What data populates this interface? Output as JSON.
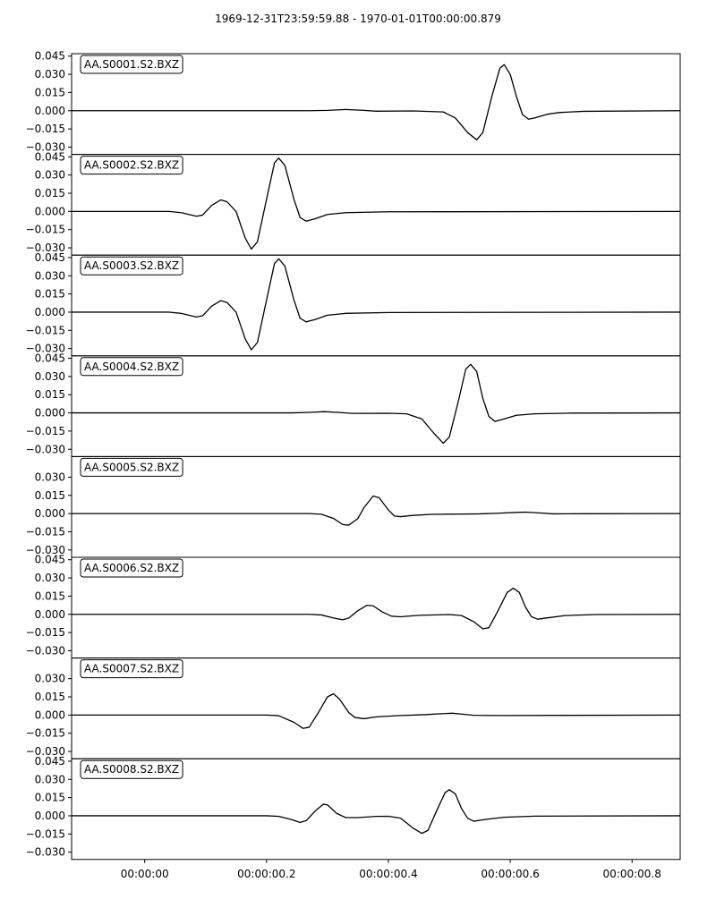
{
  "figure": {
    "title": "1969-12-31T23:59:59.88  -  1970-01-01T00:00:00.879"
  },
  "chart_data": {
    "type": "line",
    "title": "1969-12-31T23:59:59.88  -  1970-01-01T00:00:00.879",
    "x_axis": {
      "label": "",
      "range_seconds": [
        -0.12,
        0.879
      ],
      "ticks": [
        {
          "value": 0.0,
          "label": "00:00:00"
        },
        {
          "value": 0.2,
          "label": "00:00:00.2"
        },
        {
          "value": 0.4,
          "label": "00:00:00.4"
        },
        {
          "value": 0.6,
          "label": "00:00:00.6"
        },
        {
          "value": 0.8,
          "label": "00:00:00.8"
        }
      ]
    },
    "y_axis": {
      "range": [
        -0.036,
        0.047
      ],
      "unit": ""
    },
    "grid": false,
    "line_color": "#000000",
    "panels": [
      {
        "station": "AA.S0001.S2.BXZ",
        "y_ticks": [
          0.045,
          0.03,
          0.015,
          0.0,
          -0.015,
          -0.03
        ],
        "y_tick_labels": [
          "0.045",
          "0.030",
          "0.015",
          "0.000",
          "−0.015",
          "−0.030"
        ],
        "points": [
          [
            -0.12,
            0
          ],
          [
            0.27,
            0
          ],
          [
            0.3,
            0.0003
          ],
          [
            0.33,
            0.001
          ],
          [
            0.36,
            0.0003
          ],
          [
            0.38,
            -0.0004
          ],
          [
            0.44,
            -0.0002
          ],
          [
            0.49,
            -0.001
          ],
          [
            0.51,
            -0.006
          ],
          [
            0.53,
            -0.018
          ],
          [
            0.545,
            -0.024
          ],
          [
            0.555,
            -0.018
          ],
          [
            0.57,
            0.012
          ],
          [
            0.583,
            0.035
          ],
          [
            0.59,
            0.038
          ],
          [
            0.6,
            0.03
          ],
          [
            0.61,
            0.012
          ],
          [
            0.62,
            -0.003
          ],
          [
            0.63,
            -0.007
          ],
          [
            0.64,
            -0.006
          ],
          [
            0.66,
            -0.003
          ],
          [
            0.68,
            -0.0015
          ],
          [
            0.72,
            -0.0005
          ],
          [
            0.879,
            0
          ]
        ]
      },
      {
        "station": "AA.S0002.S2.BXZ",
        "y_ticks": [
          0.045,
          0.03,
          0.015,
          0.0,
          -0.015,
          -0.03
        ],
        "y_tick_labels": [
          "0.045",
          "0.030",
          "0.015",
          "0.000",
          "−0.015",
          "−0.030"
        ],
        "points": [
          [
            -0.12,
            0
          ],
          [
            0.04,
            0
          ],
          [
            0.06,
            -0.001
          ],
          [
            0.085,
            -0.004
          ],
          [
            0.095,
            -0.003
          ],
          [
            0.11,
            0.005
          ],
          [
            0.125,
            0.0095
          ],
          [
            0.135,
            0.008
          ],
          [
            0.15,
            0.0
          ],
          [
            0.165,
            -0.022
          ],
          [
            0.175,
            -0.031
          ],
          [
            0.185,
            -0.025
          ],
          [
            0.2,
            0.01
          ],
          [
            0.213,
            0.04
          ],
          [
            0.22,
            0.044
          ],
          [
            0.23,
            0.038
          ],
          [
            0.245,
            0.01
          ],
          [
            0.255,
            -0.005
          ],
          [
            0.265,
            -0.008
          ],
          [
            0.28,
            -0.006
          ],
          [
            0.3,
            -0.0025
          ],
          [
            0.33,
            -0.001
          ],
          [
            0.4,
            -0.0003
          ],
          [
            0.879,
            0
          ]
        ]
      },
      {
        "station": "AA.S0003.S2.BXZ",
        "y_ticks": [
          0.045,
          0.03,
          0.015,
          0.0,
          -0.015,
          -0.03
        ],
        "y_tick_labels": [
          "0.045",
          "0.030",
          "0.015",
          "0.000",
          "−0.015",
          "−0.030"
        ],
        "points": [
          [
            -0.12,
            0
          ],
          [
            0.04,
            0
          ],
          [
            0.06,
            -0.001
          ],
          [
            0.085,
            -0.004
          ],
          [
            0.095,
            -0.003
          ],
          [
            0.11,
            0.005
          ],
          [
            0.125,
            0.0095
          ],
          [
            0.135,
            0.008
          ],
          [
            0.15,
            0.0
          ],
          [
            0.165,
            -0.022
          ],
          [
            0.175,
            -0.031
          ],
          [
            0.185,
            -0.025
          ],
          [
            0.2,
            0.01
          ],
          [
            0.213,
            0.04
          ],
          [
            0.22,
            0.044
          ],
          [
            0.23,
            0.038
          ],
          [
            0.245,
            0.01
          ],
          [
            0.255,
            -0.005
          ],
          [
            0.265,
            -0.008
          ],
          [
            0.28,
            -0.006
          ],
          [
            0.3,
            -0.0025
          ],
          [
            0.33,
            -0.001
          ],
          [
            0.4,
            -0.0003
          ],
          [
            0.879,
            0
          ]
        ]
      },
      {
        "station": "AA.S0004.S2.BXZ",
        "y_ticks": [
          0.045,
          0.03,
          0.015,
          0.0,
          -0.015,
          -0.03
        ],
        "y_tick_labels": [
          "0.045",
          "0.030",
          "0.015",
          "0.000",
          "−0.015",
          "−0.030"
        ],
        "points": [
          [
            -0.12,
            0
          ],
          [
            0.24,
            0
          ],
          [
            0.27,
            0.0004
          ],
          [
            0.295,
            0.001
          ],
          [
            0.32,
            0.0003
          ],
          [
            0.34,
            -0.0004
          ],
          [
            0.4,
            -0.0003
          ],
          [
            0.43,
            -0.0008
          ],
          [
            0.455,
            -0.005
          ],
          [
            0.475,
            -0.017
          ],
          [
            0.49,
            -0.025
          ],
          [
            0.5,
            -0.02
          ],
          [
            0.515,
            0.01
          ],
          [
            0.527,
            0.036
          ],
          [
            0.535,
            0.04
          ],
          [
            0.545,
            0.034
          ],
          [
            0.555,
            0.012
          ],
          [
            0.565,
            -0.003
          ],
          [
            0.575,
            -0.007
          ],
          [
            0.59,
            -0.005
          ],
          [
            0.61,
            -0.002
          ],
          [
            0.64,
            -0.0008
          ],
          [
            0.7,
            -0.0002
          ],
          [
            0.879,
            0
          ]
        ]
      },
      {
        "station": "AA.S0005.S2.BXZ",
        "y_ticks": [
          0.03,
          0.015,
          0.0,
          -0.015,
          -0.03
        ],
        "y_tick_labels": [
          "0.030",
          "0.015",
          "0.000",
          "−0.015",
          "−0.030"
        ],
        "points": [
          [
            -0.12,
            0
          ],
          [
            0.27,
            0
          ],
          [
            0.29,
            -0.0005
          ],
          [
            0.31,
            -0.004
          ],
          [
            0.325,
            -0.009
          ],
          [
            0.335,
            -0.0095
          ],
          [
            0.35,
            -0.004
          ],
          [
            0.36,
            0.005
          ],
          [
            0.375,
            0.0145
          ],
          [
            0.385,
            0.013
          ],
          [
            0.4,
            0.003
          ],
          [
            0.41,
            -0.002
          ],
          [
            0.42,
            -0.0025
          ],
          [
            0.44,
            -0.0015
          ],
          [
            0.47,
            -0.0006
          ],
          [
            0.55,
            -0.0002
          ],
          [
            0.58,
            0.0003
          ],
          [
            0.61,
            0.001
          ],
          [
            0.625,
            0.0012
          ],
          [
            0.65,
            0.0005
          ],
          [
            0.67,
            -0.0002
          ],
          [
            0.72,
            -0.0001
          ],
          [
            0.879,
            0
          ]
        ]
      },
      {
        "station": "AA.S0006.S2.BXZ",
        "y_ticks": [
          0.045,
          0.03,
          0.015,
          0.0,
          -0.015,
          -0.03
        ],
        "y_tick_labels": [
          "0.045",
          "0.030",
          "0.015",
          "0.000",
          "−0.015",
          "−0.030"
        ],
        "points": [
          [
            -0.12,
            0
          ],
          [
            0.27,
            0
          ],
          [
            0.29,
            -0.0005
          ],
          [
            0.31,
            -0.003
          ],
          [
            0.325,
            -0.0045
          ],
          [
            0.335,
            -0.003
          ],
          [
            0.35,
            0.003
          ],
          [
            0.365,
            0.0075
          ],
          [
            0.375,
            0.007
          ],
          [
            0.39,
            0.002
          ],
          [
            0.405,
            -0.0015
          ],
          [
            0.42,
            -0.002
          ],
          [
            0.45,
            -0.0008
          ],
          [
            0.5,
            -0.0002
          ],
          [
            0.52,
            -0.001
          ],
          [
            0.54,
            -0.006
          ],
          [
            0.555,
            -0.012
          ],
          [
            0.565,
            -0.011
          ],
          [
            0.58,
            0.003
          ],
          [
            0.595,
            0.018
          ],
          [
            0.605,
            0.0215
          ],
          [
            0.615,
            0.018
          ],
          [
            0.625,
            0.006
          ],
          [
            0.635,
            -0.002
          ],
          [
            0.645,
            -0.004
          ],
          [
            0.66,
            -0.003
          ],
          [
            0.69,
            -0.001
          ],
          [
            0.74,
            -0.0002
          ],
          [
            0.879,
            0
          ]
        ]
      },
      {
        "station": "AA.S0007.S2.BXZ",
        "y_ticks": [
          0.03,
          0.015,
          0.0,
          -0.015,
          -0.03
        ],
        "y_tick_labels": [
          "0.030",
          "0.015",
          "0.000",
          "−0.015",
          "−0.030"
        ],
        "points": [
          [
            -0.12,
            0
          ],
          [
            0.2,
            0
          ],
          [
            0.22,
            -0.0005
          ],
          [
            0.245,
            -0.006
          ],
          [
            0.26,
            -0.011
          ],
          [
            0.27,
            -0.01
          ],
          [
            0.285,
            0.002
          ],
          [
            0.3,
            0.015
          ],
          [
            0.31,
            0.0175
          ],
          [
            0.32,
            0.013
          ],
          [
            0.335,
            0.002
          ],
          [
            0.345,
            -0.002
          ],
          [
            0.36,
            -0.003
          ],
          [
            0.38,
            -0.0015
          ],
          [
            0.42,
            -0.0004
          ],
          [
            0.46,
            0.0003
          ],
          [
            0.49,
            0.0012
          ],
          [
            0.505,
            0.0015
          ],
          [
            0.52,
            0.0008
          ],
          [
            0.54,
            -0.0002
          ],
          [
            0.58,
            -0.0004
          ],
          [
            0.879,
            0
          ]
        ]
      },
      {
        "station": "AA.S0008.S2.BXZ",
        "y_ticks": [
          0.045,
          0.03,
          0.015,
          0.0,
          -0.015,
          -0.03
        ],
        "y_tick_labels": [
          "0.045",
          "0.030",
          "0.015",
          "0.000",
          "−0.015",
          "−0.030"
        ],
        "points": [
          [
            -0.12,
            0
          ],
          [
            0.2,
            0
          ],
          [
            0.22,
            -0.0005
          ],
          [
            0.24,
            -0.003
          ],
          [
            0.255,
            -0.0055
          ],
          [
            0.265,
            -0.004
          ],
          [
            0.28,
            0.004
          ],
          [
            0.293,
            0.0095
          ],
          [
            0.3,
            0.009
          ],
          [
            0.315,
            0.002
          ],
          [
            0.33,
            -0.0015
          ],
          [
            0.35,
            -0.0015
          ],
          [
            0.38,
            -0.0005
          ],
          [
            0.4,
            -0.0004
          ],
          [
            0.42,
            -0.002
          ],
          [
            0.44,
            -0.01
          ],
          [
            0.455,
            -0.0145
          ],
          [
            0.465,
            -0.012
          ],
          [
            0.48,
            0.005
          ],
          [
            0.493,
            0.019
          ],
          [
            0.5,
            0.0215
          ],
          [
            0.51,
            0.018
          ],
          [
            0.52,
            0.006
          ],
          [
            0.53,
            -0.002
          ],
          [
            0.54,
            -0.0045
          ],
          [
            0.56,
            -0.003
          ],
          [
            0.59,
            -0.0012
          ],
          [
            0.64,
            -0.0003
          ],
          [
            0.879,
            0
          ]
        ]
      }
    ]
  }
}
